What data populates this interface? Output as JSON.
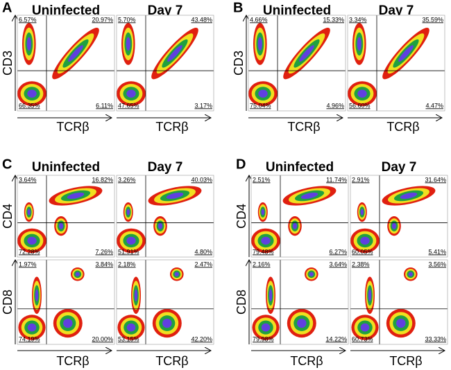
{
  "panels": [
    {
      "label": "A",
      "columns": [
        "Uninfected",
        "Day 7"
      ],
      "x_axis": "TCRβ",
      "rows": [
        {
          "y_axis": "CD3",
          "plots": [
            {
              "upper_left": "6.57%",
              "upper_right": "20.97%",
              "lower_left": "66.35%",
              "lower_right": "6.11%"
            },
            {
              "upper_left": "5.70%",
              "upper_right": "43.48%",
              "lower_left": "47.65%",
              "lower_right": "3.17%"
            }
          ]
        }
      ]
    },
    {
      "label": "B",
      "columns": [
        "Uninfected",
        "Day 7"
      ],
      "x_axis": "TCRβ",
      "rows": [
        {
          "y_axis": "CD3",
          "plots": [
            {
              "upper_left": "4.66%",
              "upper_right": "15.33%",
              "lower_left": "75.04%",
              "lower_right": "4.96%"
            },
            {
              "upper_left": "3.34%",
              "upper_right": "35.59%",
              "lower_left": "56.60%",
              "lower_right": "4.47%"
            }
          ]
        }
      ]
    },
    {
      "label": "C",
      "columns": [
        "Uninfected",
        "Day 7"
      ],
      "x_axis": "TCRβ",
      "rows": [
        {
          "y_axis": "CD4",
          "plots": [
            {
              "upper_left": "3.64%",
              "upper_right": "16.82%",
              "lower_left": "72.28%",
              "lower_right": "7.26%"
            },
            {
              "upper_left": "3.26%",
              "upper_right": "40.03%",
              "lower_left": "51.91%",
              "lower_right": "4.80%"
            }
          ]
        },
        {
          "y_axis": "CD8",
          "plots": [
            {
              "upper_left": "1.97%",
              "upper_right": "3.84%",
              "lower_left": "74.19%",
              "lower_right": "20.00%"
            },
            {
              "upper_left": "2.18%",
              "upper_right": "2.47%",
              "lower_left": "53.15%",
              "lower_right": "42.20%"
            }
          ]
        }
      ]
    },
    {
      "label": "D",
      "columns": [
        "Uninfected",
        "Day 7"
      ],
      "x_axis": "TCRβ",
      "rows": [
        {
          "y_axis": "CD4",
          "plots": [
            {
              "upper_left": "2.51%",
              "upper_right": "11.74%",
              "lower_left": "79.48%",
              "lower_right": "6.27%"
            },
            {
              "upper_left": "2.91%",
              "upper_right": "31.64%",
              "lower_left": "60.05%",
              "lower_right": "5.41%"
            }
          ]
        },
        {
          "y_axis": "CD8",
          "plots": [
            {
              "upper_left": "2.16%",
              "upper_right": "3.64%",
              "lower_left": "79.98%",
              "lower_right": "14.22%"
            },
            {
              "upper_left": "2.38%",
              "upper_right": "3.56%",
              "lower_left": "60.73%",
              "lower_right": "33.33%"
            }
          ]
        }
      ]
    }
  ]
}
